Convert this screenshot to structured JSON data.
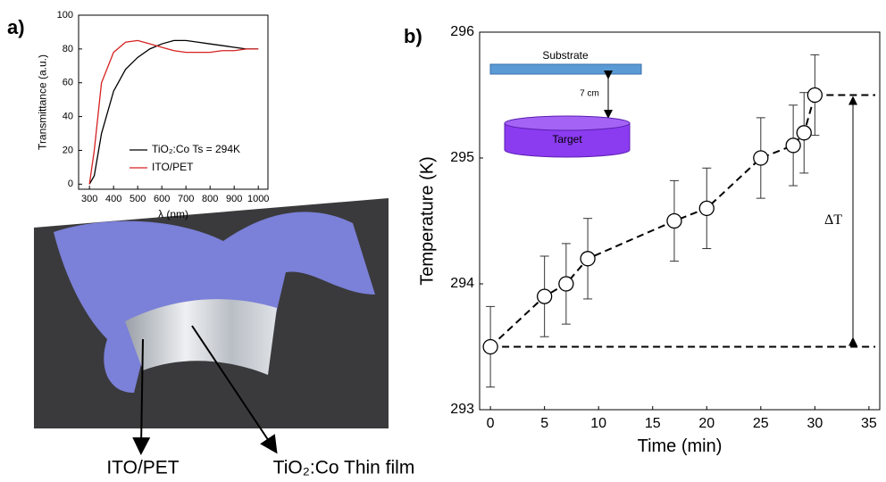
{
  "panel_labels": [
    "a)",
    "b)"
  ],
  "photo_labels": [
    "ITO/PET",
    "TiO₂:Co Thin film"
  ],
  "chart_data": [
    {
      "type": "line",
      "x_label": "λ (nm)",
      "y_label": "Transmittance (a.u.)",
      "x": [
        300,
        320,
        350,
        400,
        450,
        500,
        550,
        600,
        650,
        700,
        750,
        800,
        850,
        900,
        950,
        1000
      ],
      "series": [
        {
          "name": "TiO₂:Co Ts = 294K",
          "color": "#000000",
          "values": [
            0,
            5,
            30,
            55,
            68,
            75,
            80,
            83,
            85,
            85,
            84,
            83,
            82,
            81,
            80,
            80
          ]
        },
        {
          "name": "ITO/PET",
          "color": "#d62020",
          "values": [
            0,
            20,
            60,
            78,
            84,
            85,
            83,
            81,
            79,
            78,
            78,
            78,
            79,
            79,
            80,
            80
          ]
        }
      ],
      "xlim": [
        255,
        1040
      ],
      "ylim": [
        -3,
        100
      ],
      "xticks": [
        300,
        400,
        500,
        600,
        700,
        800,
        900,
        1000
      ],
      "yticks": [
        0,
        20,
        40,
        60,
        80,
        100
      ]
    },
    {
      "type": "scatter",
      "x_label": "Time (min)",
      "y_label": "Temperature  (K)",
      "annotations": [
        "Substrate",
        "7 cm",
        "Target",
        "ΔT"
      ],
      "x": [
        0,
        5,
        7,
        9,
        17,
        20,
        25,
        28,
        29,
        30
      ],
      "values": [
        293.5,
        293.9,
        294.0,
        294.2,
        294.5,
        294.6,
        295.0,
        295.1,
        295.2,
        295.5
      ],
      "errors": [
        0.32,
        0.32,
        0.32,
        0.32,
        0.32,
        0.32,
        0.32,
        0.32,
        0.32,
        0.32
      ],
      "xlim": [
        -1,
        36
      ],
      "ylim": [
        293,
        296
      ],
      "xticks": [
        0,
        5,
        10,
        15,
        20,
        25,
        30,
        35
      ],
      "yticks": [
        293,
        294,
        295,
        296
      ]
    }
  ]
}
